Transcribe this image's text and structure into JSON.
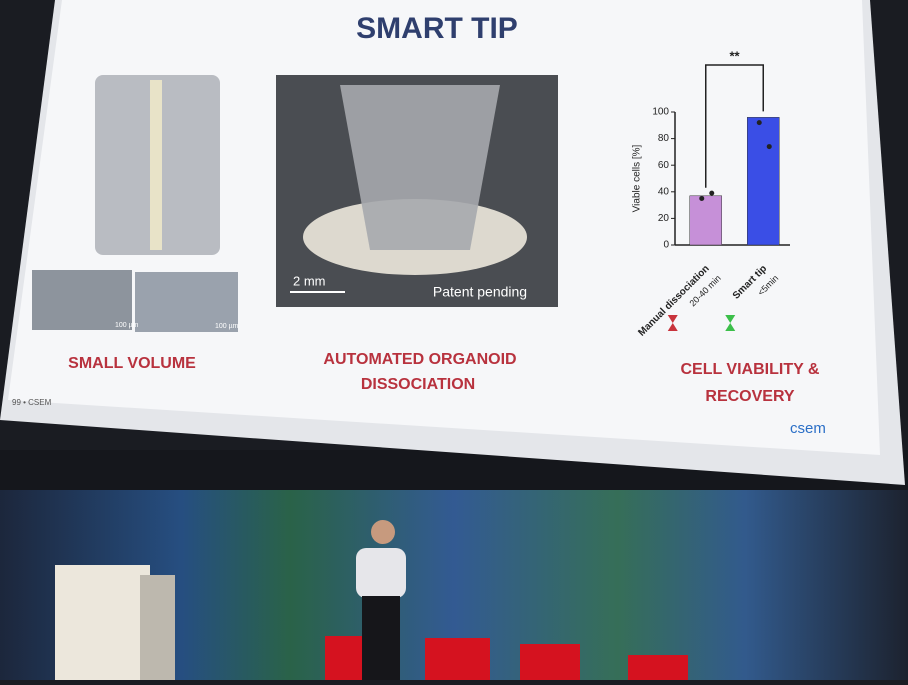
{
  "slide": {
    "title": "SMART TIP",
    "footer": "99 • CSEM",
    "logo": "csem",
    "panels": [
      {
        "caption_lines": [
          "SMALL VOLUME"
        ],
        "scale_labels": [
          "100 µm",
          "100 µm"
        ]
      },
      {
        "caption_lines": [
          "AUTOMATED ORGANOID",
          "DISSOCIATION"
        ],
        "scale_label": "2 mm",
        "note": "Patent pending"
      },
      {
        "caption_lines": [
          "CELL VIABILITY &",
          "RECOVERY"
        ]
      }
    ],
    "chart": {
      "type": "bar",
      "y_label": "Viable cells [%]",
      "categories": [
        "Manual dissociation",
        "Smart tip"
      ],
      "durations": [
        "20-40 min",
        "<5min"
      ],
      "values": [
        37,
        96
      ],
      "points": [
        [
          35,
          39
        ],
        [
          92,
          74
        ]
      ],
      "colors": [
        "#c690d8",
        "#3a4ee6"
      ],
      "ylim": [
        0,
        100
      ],
      "yticks": [
        0,
        20,
        40,
        60,
        80,
        100
      ],
      "significance": "**"
    }
  }
}
